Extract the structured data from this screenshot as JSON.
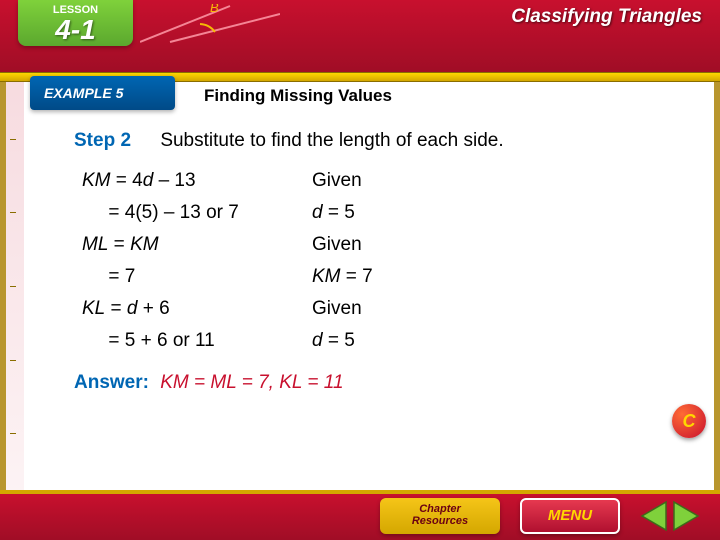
{
  "header": {
    "lesson_label": "LESSON",
    "lesson_number": "4-1",
    "chapter_title": "Classifying Triangles",
    "diagram_label": "B",
    "colors": {
      "bg": "#c8102e",
      "lesson_tab": "#7fd13b",
      "text": "#ffffff"
    }
  },
  "example": {
    "label": "EXAMPLE 5"
  },
  "slide_title": "Finding Missing Values",
  "step": {
    "label": "Step 2",
    "text": "Substitute to find the length of each side."
  },
  "equations": [
    {
      "left_var": "KM",
      "left_expr": " = 4d – 13",
      "right": "Given",
      "right_it": false
    },
    {
      "left_var": "",
      "left_expr": "     = 4(5) – 13 or 7",
      "right": "d = 5",
      "right_it": true
    },
    {
      "left_var": "ML",
      "left_expr": " = KM",
      "right": "Given",
      "right_it": false
    },
    {
      "left_var": "",
      "left_expr": "     = 7",
      "right": "KM = 7",
      "right_it": true
    },
    {
      "left_var": "KL",
      "left_expr": " = d + 6",
      "right": "Given",
      "right_it": false
    },
    {
      "left_var": "",
      "left_expr": "     = 5 + 6 or 11",
      "right": "d = 5",
      "right_it": true
    }
  ],
  "answer": {
    "label": "Answer:",
    "text": "KM = ML = 7, KL = 11"
  },
  "footer": {
    "chapter_resources_l1": "Chapter",
    "chapter_resources_l2": "Resources",
    "menu": "MENU",
    "corner": "C"
  },
  "styling": {
    "body_font": "Arial",
    "accent_blue": "#0066b3",
    "accent_red": "#c8102e",
    "accent_gold": "#d4a700",
    "content_fontsize": 19,
    "title_fontsize": 17
  }
}
